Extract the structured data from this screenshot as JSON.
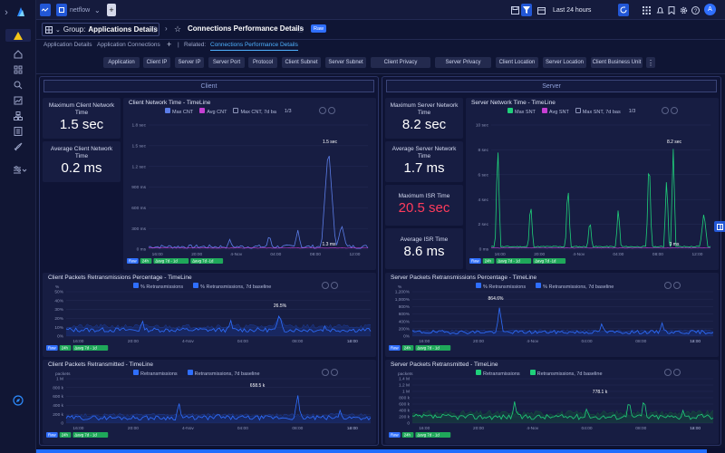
{
  "topbar": {
    "app_name": "netflow",
    "timeframe": "Last 24 hours",
    "avatar": "A"
  },
  "crumbs": {
    "group_prefix": "Group:",
    "group_name": "Applications Details",
    "page_title": "Connections Performance Details",
    "badge": "Raw"
  },
  "tabs": {
    "items": [
      "Application Details",
      "Application Connections"
    ],
    "add": "+",
    "related_label": "Related:",
    "related_item": "Connections Performance Details"
  },
  "filters": [
    "Application",
    "Client IP",
    "Server IP",
    "Server Port",
    "Protocol",
    "Client Subnet",
    "Server Subnet",
    "Client Privacy",
    "Server Privacy",
    "Client Location",
    "Server Location",
    "Client Business Unit"
  ],
  "client": {
    "header": "Client",
    "kpis": [
      {
        "title": "Maximum Client Network Time",
        "value": "1.5 sec"
      },
      {
        "title": "Average Client Network Time",
        "value": "0.2 ms"
      }
    ],
    "network_time": {
      "title": "Client Network Time - TimeLine",
      "legend": [
        "Max CNT",
        "Avg CNT",
        "Max CNT, 7d ba"
      ],
      "page": "1/3",
      "peak_label": "1.5 sec",
      "low_label": "1.3 ms",
      "yticks": [
        "1.8 sec",
        "1.5 sec",
        "1.2 sec",
        "900 ms",
        "600 ms",
        "300 ms",
        "0 ms"
      ],
      "xticks": [
        "16:00",
        "20:00",
        "4-Nov",
        "04:00",
        "08:00",
        "12:00"
      ],
      "tags": [
        "Raw",
        "24h",
        "Δavg 7d - 1d",
        "Δavg 7d -1d"
      ]
    },
    "retrans_pct": {
      "title": "Client Packets Retransmissions Percentage - TimeLine",
      "legend": [
        "% Retransmissions",
        "% Retransmissions, 7d baseline"
      ],
      "unit": "%",
      "peak_label": "26.5%",
      "yticks": [
        "50%",
        "40%",
        "30%",
        "20%",
        "10%",
        "0%"
      ],
      "xticks": [
        "16:00",
        "20:00",
        "4-Nov",
        "04:00",
        "08:00",
        "12:00",
        "16:00"
      ],
      "tags": [
        "Raw",
        "24h",
        "Δavg 7d - 1d"
      ]
    },
    "retrans_cnt": {
      "title": "Client Packets Retransmitted - TimeLine",
      "legend": [
        "Retransmissions",
        "Retransmissions, 7d baseline"
      ],
      "unit": "packets",
      "peak_label": "658.5 k",
      "yticks": [
        "1 M",
        "800 k",
        "600 k",
        "400 k",
        "200 k",
        "0"
      ],
      "xticks": [
        "16:00",
        "20:00",
        "4-Nov",
        "04:00",
        "08:00",
        "12:00",
        "16:00"
      ],
      "tags": [
        "Raw",
        "24h",
        "Δavg 7d - 1d"
      ]
    }
  },
  "server": {
    "header": "Server",
    "kpis": [
      {
        "title": "Maximum Server Network Time",
        "value": "8.2 sec"
      },
      {
        "title": "Average Server Network Time",
        "value": "1.7 ms"
      },
      {
        "title": "Maximum ISR Time",
        "value": "20.5 sec"
      },
      {
        "title": "Average ISR Time",
        "value": "8.6 ms"
      }
    ],
    "network_time": {
      "title": "Server Network Time - TimeLine",
      "legend": [
        "Max SNT",
        "Avg SNT",
        "Max SNT, 7d bas"
      ],
      "page": "1/3",
      "peak_label": "8.2 sec",
      "low_label": "3 ms",
      "yticks": [
        "10 sec",
        "8 sec",
        "6 sec",
        "4 sec",
        "2 sec",
        "0 ms"
      ],
      "xticks": [
        "16:00",
        "20:00",
        "4-Nov",
        "04:00",
        "08:00",
        "12:00"
      ],
      "tags": [
        "Raw",
        "24h",
        "Δavg 7d - 1d",
        "Δavg 7d -1d"
      ]
    },
    "retrans_pct": {
      "title": "Server Packets Retransmissions Percentage - TimeLine",
      "legend": [
        "% Retransmissions",
        "% Retransmissions, 7d baseline"
      ],
      "unit": "%",
      "peak_label": "864.6%",
      "yticks": [
        "1,200%",
        "1,000%",
        "800%",
        "600%",
        "400%",
        "200%",
        "0%"
      ],
      "xticks": [
        "16:00",
        "20:00",
        "4-Nov",
        "04:00",
        "08:00",
        "12:00",
        "16:00"
      ],
      "tags": [
        "Raw",
        "24h",
        "Δavg 7d - 1d"
      ]
    },
    "retrans_cnt": {
      "title": "Server Packets Retransmitted - TimeLine",
      "legend": [
        "Retransmissions",
        "Retransmissions, 7d baseline"
      ],
      "unit": "packets",
      "peak_label": "778.1 k",
      "yticks": [
        "1.4 M",
        "1.2 M",
        "1 M",
        "800 k",
        "600 k",
        "400 k",
        "200 k",
        "0"
      ],
      "xticks": [
        "16:00",
        "20:00",
        "4-Nov",
        "04:00",
        "08:00",
        "12:00",
        "16:00"
      ],
      "tags": [
        "Raw",
        "24h",
        "Δavg 7d - 1d"
      ]
    }
  },
  "colors": {
    "client_max": "#5b7de8",
    "client_avg": "#c63fd3",
    "server_max": "#1fd07a",
    "server_avg": "#c63fd3",
    "retrans_client": "#2f6fff",
    "retrans_server": "#2f6fff",
    "retrans_server_cnt": "#1fd07a",
    "isr_red": "#ff3b5c"
  },
  "icons": [
    "logo-icon",
    "warning-icon",
    "home-icon",
    "grid-icon",
    "search-icon",
    "chart-icon",
    "hierarchy-icon",
    "list-icon",
    "rocket-icon",
    "settings-icon",
    "compass-icon"
  ]
}
